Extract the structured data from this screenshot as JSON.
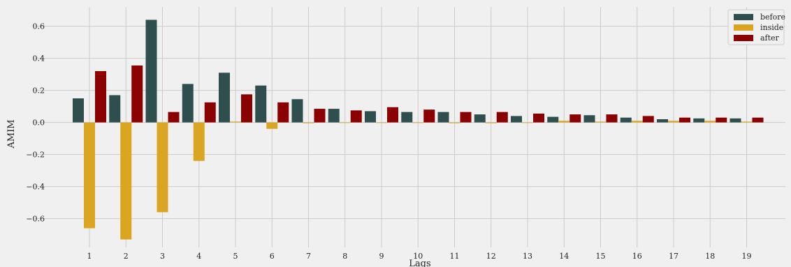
{
  "chart_data": {
    "type": "bar",
    "xlabel": "Lags",
    "ylabel": "AMIM",
    "categories": [
      "1",
      "2",
      "3",
      "4",
      "5",
      "6",
      "7",
      "8",
      "9",
      "10",
      "11",
      "12",
      "13",
      "14",
      "15",
      "16",
      "17",
      "18",
      "19"
    ],
    "y_ticks": [
      "0.6",
      "0.4",
      "0.2",
      "0.0",
      "−0.2",
      "−0.4",
      "−0.6"
    ],
    "ylim": [
      -0.78,
      0.72
    ],
    "grid": true,
    "legend_position": "top-right",
    "series": [
      {
        "name": "before",
        "color": "#2f4f4f",
        "values": [
          0.15,
          0.17,
          0.64,
          0.24,
          0.31,
          0.23,
          0.145,
          0.085,
          0.07,
          0.065,
          0.065,
          0.05,
          0.04,
          0.035,
          0.045,
          0.03,
          0.02,
          0.025,
          0.025
        ]
      },
      {
        "name": "inside",
        "color": "#daa520",
        "values": [
          -0.66,
          -0.73,
          -0.56,
          -0.24,
          0.005,
          -0.04,
          -0.005,
          0.0,
          0.0,
          0.0,
          -0.005,
          -0.005,
          0.0,
          0.01,
          0.005,
          0.01,
          0.01,
          0.01,
          0.005
        ]
      },
      {
        "name": "after",
        "color": "#8b0000",
        "values": [
          0.32,
          0.355,
          0.065,
          0.125,
          0.175,
          0.125,
          0.085,
          0.075,
          0.095,
          0.08,
          0.065,
          0.065,
          0.055,
          0.05,
          0.05,
          0.04,
          0.03,
          0.03,
          0.03
        ]
      }
    ]
  }
}
